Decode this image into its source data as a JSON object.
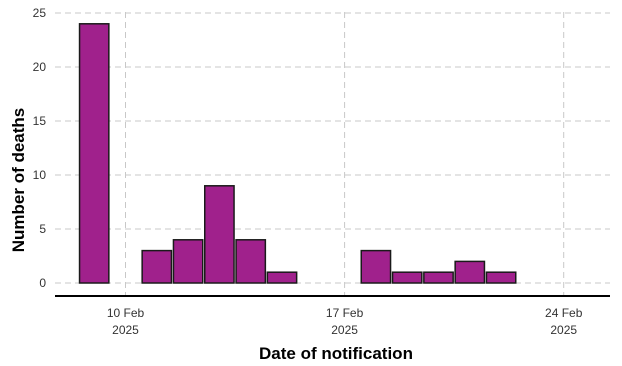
{
  "chart_data": {
    "type": "bar",
    "title": "",
    "xlabel": "Date of notification",
    "ylabel": "Number of deaths",
    "ylim": [
      0,
      25
    ],
    "yticks": [
      0,
      5,
      10,
      15,
      20,
      25
    ],
    "xlim": [
      "2025-02-08",
      "2025-02-26"
    ],
    "xticks": [
      {
        "date": "2025-02-10",
        "label_day": "10 Feb",
        "label_year": "2025"
      },
      {
        "date": "2025-02-17",
        "label_day": "17 Feb",
        "label_year": "2025"
      },
      {
        "date": "2025-02-24",
        "label_day": "24 Feb",
        "label_year": "2025"
      }
    ],
    "grid": true,
    "bar_color": "#A0218C",
    "points": [
      {
        "date": "2025-02-09",
        "value": 24
      },
      {
        "date": "2025-02-11",
        "value": 3
      },
      {
        "date": "2025-02-12",
        "value": 4
      },
      {
        "date": "2025-02-13",
        "value": 9
      },
      {
        "date": "2025-02-14",
        "value": 4
      },
      {
        "date": "2025-02-15",
        "value": 1
      },
      {
        "date": "2025-02-18",
        "value": 3
      },
      {
        "date": "2025-02-19",
        "value": 1
      },
      {
        "date": "2025-02-20",
        "value": 1
      },
      {
        "date": "2025-02-21",
        "value": 2
      },
      {
        "date": "2025-02-22",
        "value": 1
      }
    ]
  }
}
